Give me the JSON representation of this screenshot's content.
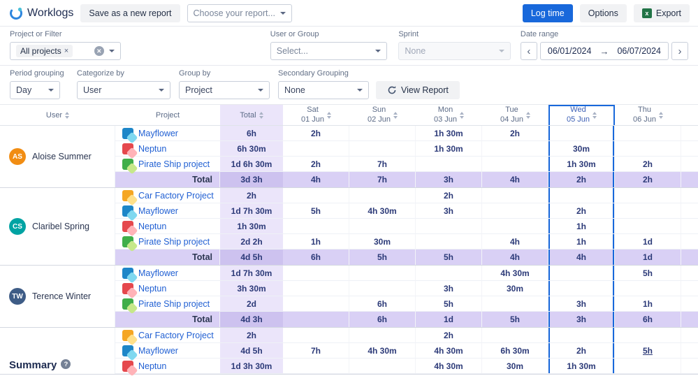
{
  "topbar": {
    "app_name": "Worklogs",
    "save_report_label": "Save as a new report",
    "choose_report_placeholder": "Choose your report...",
    "log_time_label": "Log time",
    "options_label": "Options",
    "export_label": "Export"
  },
  "icons": {
    "excel_glyph": "x",
    "prev": "‹",
    "next": "›",
    "range_arrow": "→",
    "clear": "✕",
    "chip_remove": "×",
    "help": "?"
  },
  "colors": {
    "accent_blue": "#1868db",
    "highlight_column_border": "#1868db",
    "link_blue": "#2160d3",
    "value_navy": "#2c3a78",
    "total_column_bg": "#ebe5fa",
    "total_row_bg": "#d9d0f5"
  },
  "filters": {
    "project": {
      "label": "Project or Filter",
      "chip": "All projects"
    },
    "user_group": {
      "label": "User or Group",
      "placeholder": "Select..."
    },
    "sprint": {
      "label": "Sprint",
      "value": "None"
    },
    "date_range": {
      "label": "Date range",
      "start": "06/01/2024",
      "end": "06/07/2024"
    },
    "period_grouping": {
      "label": "Period grouping",
      "value": "Day"
    },
    "categorize_by": {
      "label": "Categorize by",
      "value": "User"
    },
    "group_by": {
      "label": "Group by",
      "value": "Project"
    },
    "secondary_grouping": {
      "label": "Secondary Grouping",
      "value": "None"
    },
    "view_report_label": "View Report"
  },
  "project_icons": {
    "mayflower": {
      "bg": "#1d86c8",
      "fg": "#7fd8f0"
    },
    "neptun": {
      "bg": "#e5484d",
      "fg": "#ffb3b8"
    },
    "pirate": {
      "bg": "#3fae49",
      "fg": "#c6e88a"
    },
    "car": {
      "bg": "#f5a623",
      "fg": "#ffe08a"
    }
  },
  "table": {
    "user_header": "User",
    "project_header": "Project",
    "total_header": "Total",
    "total_row_label": "Total",
    "day_columns": [
      {
        "day": "Sat",
        "date": "01 Jun",
        "highlighted": false
      },
      {
        "day": "Sun",
        "date": "02 Jun",
        "highlighted": false
      },
      {
        "day": "Mon",
        "date": "03 Jun",
        "highlighted": false
      },
      {
        "day": "Tue",
        "date": "04 Jun",
        "highlighted": false
      },
      {
        "day": "Wed",
        "date": "05 Jun",
        "highlighted": true
      },
      {
        "day": "Thu",
        "date": "06 Jun",
        "highlighted": false
      }
    ],
    "groups": [
      {
        "user": "Aloise Summer",
        "initials": "AS",
        "avatar_color": "#f18d13",
        "rows": [
          {
            "project": "Mayflower",
            "icon": "mayflower",
            "total": "6h",
            "days": [
              "2h",
              "",
              "1h 30m",
              "2h",
              "",
              ""
            ]
          },
          {
            "project": "Neptun",
            "icon": "neptun",
            "total": "6h 30m",
            "days": [
              "",
              "",
              "1h 30m",
              "",
              "30m",
              ""
            ]
          },
          {
            "project": "Pirate Ship project",
            "icon": "pirate",
            "total": "1d 6h 30m",
            "days": [
              "2h",
              "7h",
              "",
              "",
              "1h 30m",
              "2h"
            ]
          }
        ],
        "total": {
          "total": "3d 3h",
          "days": [
            "4h",
            "7h",
            "3h",
            "4h",
            "2h",
            "2h"
          ]
        }
      },
      {
        "user": "Claribel Spring",
        "initials": "CS",
        "avatar_color": "#00a3a3",
        "rows": [
          {
            "project": "Car Factory Project",
            "icon": "car",
            "total": "2h",
            "days": [
              "",
              "",
              "2h",
              "",
              "",
              ""
            ]
          },
          {
            "project": "Mayflower",
            "icon": "mayflower",
            "total": "1d 7h 30m",
            "days": [
              "5h",
              "4h 30m",
              "3h",
              "",
              "2h",
              ""
            ]
          },
          {
            "project": "Neptun",
            "icon": "neptun",
            "total": "1h 30m",
            "days": [
              "",
              "",
              "",
              "",
              "1h",
              ""
            ]
          },
          {
            "project": "Pirate Ship project",
            "icon": "pirate",
            "total": "2d 2h",
            "days": [
              "1h",
              "30m",
              "",
              "4h",
              "1h",
              "1d"
            ]
          }
        ],
        "total": {
          "total": "4d 5h",
          "days": [
            "6h",
            "5h",
            "5h",
            "4h",
            "4h",
            "1d"
          ]
        }
      },
      {
        "user": "Terence Winter",
        "initials": "TW",
        "avatar_color": "#3e5c86",
        "rows": [
          {
            "project": "Mayflower",
            "icon": "mayflower",
            "total": "1d 7h 30m",
            "days": [
              "",
              "",
              "",
              "4h 30m",
              "",
              "5h"
            ]
          },
          {
            "project": "Neptun",
            "icon": "neptun",
            "total": "3h 30m",
            "days": [
              "",
              "",
              "3h",
              "30m",
              "",
              ""
            ]
          },
          {
            "project": "Pirate Ship project",
            "icon": "pirate",
            "total": "2d",
            "days": [
              "",
              "6h",
              "5h",
              "",
              "3h",
              "1h"
            ]
          }
        ],
        "total": {
          "total": "4d 3h",
          "days": [
            "",
            "6h",
            "1d",
            "5h",
            "3h",
            "6h"
          ]
        }
      }
    ],
    "summary": {
      "label": "Summary",
      "rows": [
        {
          "project": "Car Factory Project",
          "icon": "car",
          "total": "2h",
          "days": [
            "",
            "",
            "2h",
            "",
            "",
            ""
          ]
        },
        {
          "project": "Mayflower",
          "icon": "mayflower",
          "total": "4d 5h",
          "days": [
            "7h",
            "4h 30m",
            "4h 30m",
            "6h 30m",
            "2h",
            {
              "v": "5h",
              "u": true
            }
          ]
        },
        {
          "project": "Neptun",
          "icon": "neptun",
          "total": "1d 3h 30m",
          "days": [
            "",
            "",
            "4h 30m",
            "30m",
            "1h 30m",
            ""
          ]
        }
      ]
    }
  }
}
